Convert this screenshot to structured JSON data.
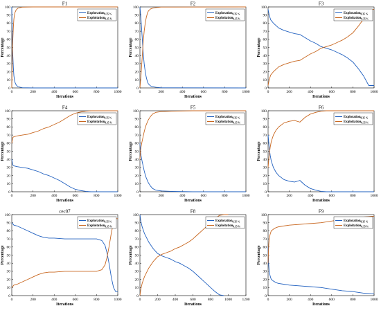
{
  "colors": {
    "exploration": "#1f5fbf",
    "exploitation": "#c8661e",
    "axis": "#000000"
  },
  "legend": {
    "exploration": "Exploration",
    "exploitation": "Exploitation",
    "subscript": "0.35 %",
    "placement": "top-right"
  },
  "chart_data": [
    {
      "type": "line",
      "title": "F1",
      "xlabel": "Iterations",
      "ylabel": "Percentage",
      "xlim": [
        0,
        1000
      ],
      "ylim": [
        0,
        100
      ],
      "xticks": [
        "0",
        "200",
        "400",
        "600",
        "800",
        "1000"
      ],
      "yticks": [
        "0",
        "10",
        "20",
        "30",
        "40",
        "50",
        "60",
        "70",
        "80",
        "90",
        "100"
      ],
      "series": [
        {
          "name": "Exploration",
          "x": [
            0,
            2,
            5,
            10,
            15,
            20,
            25,
            30,
            40,
            50,
            60,
            80,
            100,
            150,
            200,
            1000
          ],
          "values": [
            100,
            85,
            60,
            40,
            25,
            15,
            10,
            7,
            4,
            2.5,
            1.5,
            0.8,
            0.3,
            0.1,
            0,
            0
          ]
        },
        {
          "name": "Exploitation",
          "x": [
            0,
            2,
            5,
            10,
            15,
            20,
            25,
            30,
            40,
            50,
            60,
            80,
            100,
            150,
            200,
            1000
          ],
          "values": [
            0,
            15,
            40,
            60,
            75,
            85,
            90,
            93,
            96,
            97.5,
            98.5,
            99.2,
            99.7,
            99.9,
            100,
            100
          ]
        }
      ]
    },
    {
      "type": "line",
      "title": "F2",
      "xlabel": "Iterations",
      "ylabel": "Percentage",
      "xlim": [
        0,
        1000
      ],
      "ylim": [
        0,
        100
      ],
      "xticks": [
        "0",
        "200",
        "400",
        "600",
        "800",
        "1000"
      ],
      "yticks": [
        "0",
        "10",
        "20",
        "30",
        "40",
        "50",
        "60",
        "70",
        "80",
        "90",
        "100"
      ],
      "series": [
        {
          "name": "Exploration",
          "x": [
            0,
            10,
            20,
            30,
            40,
            50,
            60,
            70,
            80,
            100,
            120,
            150,
            200,
            1000
          ],
          "values": [
            100,
            85,
            65,
            45,
            30,
            20,
            13,
            8,
            5,
            2.5,
            1.5,
            0.8,
            0.2,
            0
          ]
        },
        {
          "name": "Exploitation",
          "x": [
            0,
            10,
            20,
            30,
            40,
            50,
            60,
            70,
            80,
            100,
            120,
            150,
            200,
            1000
          ],
          "values": [
            0,
            15,
            35,
            55,
            70,
            80,
            87,
            92,
            95,
            97.5,
            98.5,
            99.2,
            99.8,
            100
          ]
        }
      ]
    },
    {
      "type": "line",
      "title": "F3",
      "xlabel": "Iterations",
      "ylabel": "Percentage",
      "xlim": [
        0,
        1000
      ],
      "ylim": [
        0,
        100
      ],
      "xticks": [
        "0",
        "200",
        "400",
        "600",
        "800",
        "1000"
      ],
      "yticks": [
        "0",
        "10",
        "20",
        "30",
        "40",
        "50",
        "60",
        "70",
        "80",
        "90",
        "100"
      ],
      "series": [
        {
          "name": "Exploration",
          "x": [
            0,
            10,
            25,
            50,
            100,
            150,
            200,
            250,
            300,
            350,
            400,
            450,
            500,
            550,
            600,
            650,
            700,
            750,
            800,
            850,
            900,
            950,
            1000
          ],
          "values": [
            97,
            90,
            84,
            80,
            74,
            71,
            69,
            67,
            66,
            62,
            58,
            55,
            51,
            49,
            47,
            44,
            41,
            37,
            32,
            24,
            15,
            3,
            3
          ]
        },
        {
          "name": "Exploitation",
          "x": [
            0,
            10,
            25,
            50,
            100,
            150,
            200,
            250,
            300,
            350,
            400,
            450,
            500,
            550,
            600,
            650,
            700,
            750,
            800,
            850,
            900,
            950,
            1000
          ],
          "values": [
            3,
            10,
            16,
            20,
            26,
            29,
            31,
            33,
            34,
            38,
            42,
            45,
            49,
            51,
            53,
            56,
            59,
            63,
            68,
            76,
            85,
            97,
            97
          ]
        }
      ]
    },
    {
      "type": "line",
      "title": "F4",
      "xlabel": "Iterations",
      "ylabel": "Percentage",
      "xlim": [
        0,
        1000
      ],
      "ylim": [
        0,
        100
      ],
      "xticks": [
        "0",
        "200",
        "400",
        "600",
        "800",
        "1000"
      ],
      "yticks": [
        "0",
        "10",
        "20",
        "30",
        "40",
        "50",
        "60",
        "70",
        "80",
        "90",
        "100"
      ],
      "series": [
        {
          "name": "Exploration",
          "x": [
            0,
            10,
            20,
            50,
            100,
            150,
            200,
            250,
            300,
            350,
            400,
            450,
            500,
            550,
            600,
            650,
            700,
            750,
            800,
            1000
          ],
          "values": [
            40,
            33,
            32,
            31,
            30,
            29,
            27,
            25,
            22,
            20,
            17,
            14,
            10,
            6,
            3,
            1.5,
            0.5,
            0,
            0,
            0
          ]
        },
        {
          "name": "Exploitation",
          "x": [
            0,
            10,
            20,
            50,
            100,
            150,
            200,
            250,
            300,
            350,
            400,
            450,
            500,
            550,
            600,
            650,
            700,
            750,
            800,
            1000
          ],
          "values": [
            60,
            67,
            68,
            69,
            70,
            71,
            73,
            75,
            78,
            80,
            83,
            86,
            90,
            94,
            97,
            98.5,
            99.5,
            100,
            100,
            100
          ]
        }
      ]
    },
    {
      "type": "line",
      "title": "F5",
      "xlabel": "Iterations",
      "ylabel": "Percentage",
      "xlim": [
        0,
        1000
      ],
      "ylim": [
        0,
        100
      ],
      "xticks": [
        "0",
        "200",
        "400",
        "600",
        "800",
        "1000"
      ],
      "yticks": [
        "0",
        "10",
        "20",
        "30",
        "40",
        "50",
        "60",
        "70",
        "80",
        "90",
        "100"
      ],
      "series": [
        {
          "name": "Exploration",
          "x": [
            0,
            5,
            10,
            20,
            30,
            40,
            50,
            60,
            80,
            100,
            120,
            150,
            200,
            300,
            500,
            1000
          ],
          "values": [
            60,
            50,
            45,
            38,
            32,
            26,
            21,
            17,
            11,
            7,
            4,
            2,
            1,
            0.5,
            0,
            0
          ]
        },
        {
          "name": "Exploitation",
          "x": [
            0,
            5,
            10,
            20,
            30,
            40,
            50,
            60,
            80,
            100,
            120,
            150,
            200,
            300,
            500,
            1000
          ],
          "values": [
            40,
            50,
            55,
            62,
            68,
            74,
            79,
            83,
            89,
            93,
            96,
            98,
            99,
            99.5,
            100,
            100
          ]
        }
      ]
    },
    {
      "type": "line",
      "title": "F6",
      "xlabel": "Iterations",
      "ylabel": "Percentage",
      "xlim": [
        0,
        1000
      ],
      "ylim": [
        0,
        100
      ],
      "xticks": [
        "0",
        "200",
        "400",
        "600",
        "800",
        "1000"
      ],
      "yticks": [
        "0",
        "10",
        "20",
        "30",
        "40",
        "50",
        "60",
        "70",
        "80",
        "90",
        "100"
      ],
      "series": [
        {
          "name": "Exploration",
          "x": [
            0,
            10,
            20,
            30,
            50,
            75,
            100,
            150,
            200,
            250,
            300,
            350,
            400,
            450,
            500,
            550,
            1000
          ],
          "values": [
            70,
            55,
            45,
            38,
            30,
            24,
            20,
            15,
            13,
            12,
            14,
            8,
            4,
            2,
            0.5,
            0,
            0
          ]
        },
        {
          "name": "Exploitation",
          "x": [
            0,
            10,
            20,
            30,
            50,
            75,
            100,
            150,
            200,
            250,
            300,
            350,
            400,
            450,
            500,
            550,
            1000
          ],
          "values": [
            30,
            45,
            55,
            62,
            70,
            76,
            80,
            85,
            87,
            88,
            86,
            92,
            96,
            98,
            99.5,
            100,
            100
          ]
        }
      ]
    },
    {
      "type": "line",
      "title": "cec07",
      "xlabel": "Iterations",
      "ylabel": "Percentage",
      "xlim": [
        0,
        1000
      ],
      "ylim": [
        0,
        100
      ],
      "xticks": [
        "0",
        "200",
        "400",
        "600",
        "800",
        "1000"
      ],
      "yticks": [
        "0",
        "10",
        "20",
        "30",
        "40",
        "50",
        "60",
        "70",
        "80",
        "90",
        "100"
      ],
      "series": [
        {
          "name": "Exploration",
          "x": [
            0,
            20,
            50,
            100,
            150,
            200,
            250,
            300,
            350,
            400,
            500,
            600,
            700,
            800,
            850,
            880,
            900,
            920,
            940,
            960,
            980,
            1000
          ],
          "values": [
            90,
            87,
            86,
            83,
            80,
            77,
            74,
            72,
            71,
            71,
            70,
            70,
            70,
            70,
            68,
            62,
            52,
            38,
            22,
            10,
            5,
            5
          ]
        },
        {
          "name": "Exploitation",
          "x": [
            0,
            20,
            50,
            100,
            150,
            200,
            250,
            300,
            350,
            400,
            500,
            600,
            700,
            800,
            850,
            880,
            900,
            920,
            940,
            960,
            980,
            1000
          ],
          "values": [
            10,
            13,
            14,
            17,
            20,
            23,
            26,
            28,
            29,
            29,
            30,
            30,
            30,
            30,
            32,
            38,
            48,
            62,
            78,
            90,
            95,
            95
          ]
        }
      ]
    },
    {
      "type": "line",
      "title": "F8",
      "xlabel": "Iterations",
      "ylabel": "Percentage",
      "xlim": [
        0,
        1200
      ],
      "ylim": [
        0,
        100
      ],
      "xticks": [
        "0",
        "200",
        "400",
        "600",
        "800",
        "1000",
        "1200"
      ],
      "yticks": [
        "0",
        "10",
        "20",
        "30",
        "40",
        "50",
        "60",
        "70",
        "80",
        "90",
        "100"
      ],
      "series": [
        {
          "name": "Exploration",
          "x": [
            0,
            10,
            25,
            50,
            100,
            150,
            200,
            250,
            300,
            350,
            400,
            450,
            500,
            550,
            600,
            650,
            700,
            750,
            800,
            850,
            900,
            950
          ],
          "values": [
            100,
            92,
            85,
            77,
            66,
            58,
            52,
            49,
            47,
            45,
            42,
            40,
            37,
            34,
            30,
            25,
            20,
            15,
            10,
            5,
            1,
            0
          ]
        },
        {
          "name": "Exploitation",
          "x": [
            0,
            10,
            25,
            50,
            100,
            150,
            200,
            250,
            300,
            350,
            400,
            450,
            500,
            550,
            600,
            650,
            700,
            750,
            800,
            850,
            900,
            950,
            1000
          ],
          "values": [
            0,
            8,
            15,
            23,
            34,
            42,
            48,
            51,
            53,
            55,
            58,
            60,
            63,
            66,
            70,
            75,
            80,
            85,
            90,
            95,
            99,
            100,
            100
          ]
        }
      ]
    },
    {
      "type": "line",
      "title": "F9",
      "xlabel": "Iterations",
      "ylabel": "Percentage",
      "xlim": [
        0,
        1000
      ],
      "ylim": [
        0,
        100
      ],
      "xticks": [
        "0",
        "200",
        "400",
        "600",
        "800",
        "1000"
      ],
      "yticks": [
        "0",
        "10",
        "20",
        "30",
        "40",
        "50",
        "60",
        "70",
        "80",
        "90",
        "100"
      ],
      "series": [
        {
          "name": "Exploration",
          "x": [
            0,
            5,
            10,
            20,
            30,
            50,
            75,
            100,
            150,
            200,
            300,
            400,
            500,
            600,
            700,
            800,
            900,
            1000
          ],
          "values": [
            60,
            40,
            30,
            24,
            20,
            18,
            16,
            15,
            14,
            13,
            12,
            11,
            10,
            8,
            6,
            5,
            3,
            2
          ]
        },
        {
          "name": "Exploitation",
          "x": [
            0,
            5,
            10,
            20,
            30,
            50,
            75,
            100,
            150,
            200,
            300,
            400,
            500,
            600,
            700,
            800,
            900,
            1000
          ],
          "values": [
            40,
            60,
            70,
            76,
            80,
            82,
            84,
            85,
            86,
            87,
            88,
            89,
            90,
            92,
            94,
            95,
            97,
            98
          ]
        }
      ]
    }
  ]
}
